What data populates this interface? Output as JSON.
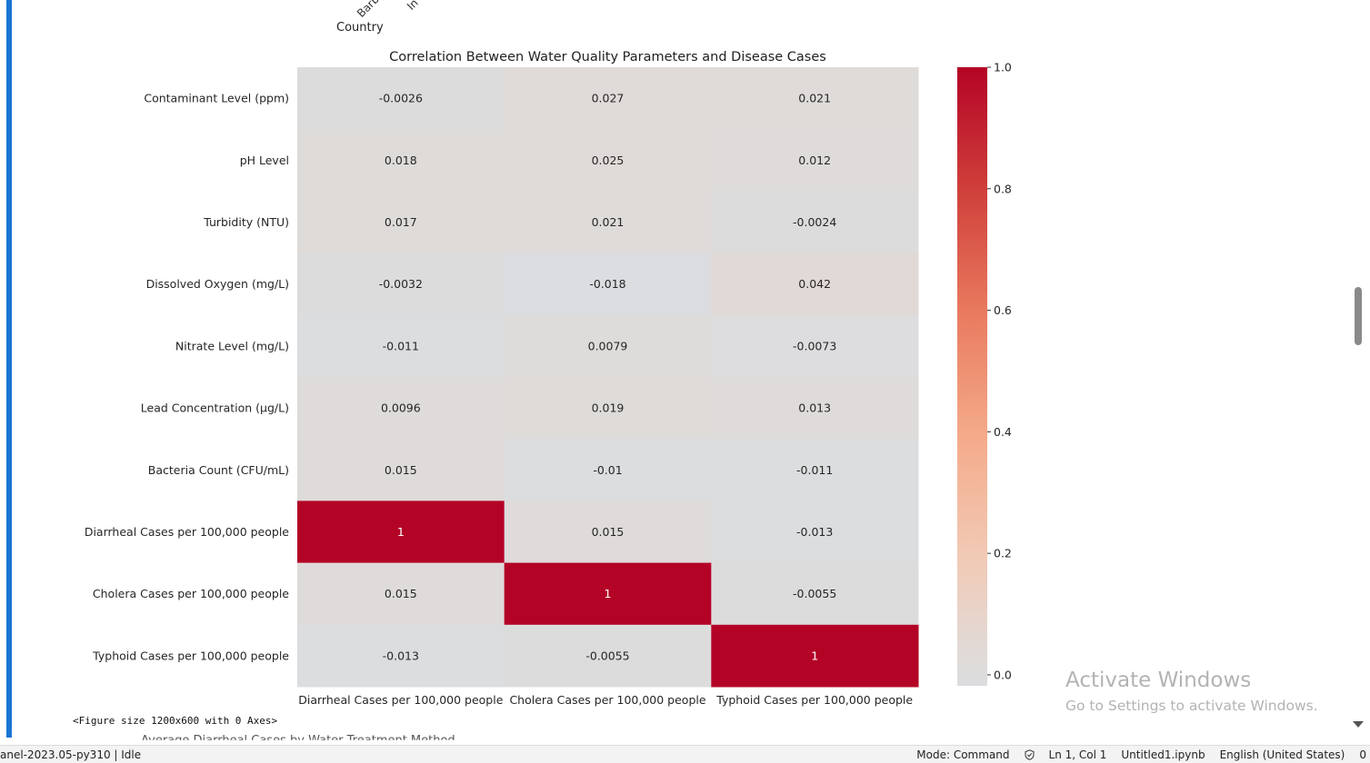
{
  "notebook": {
    "cut_top_labels": [
      "Barb",
      "In"
    ],
    "x_axis_label_previous": "Country",
    "figure_text": "<Figure size 1200x600 with 0 Axes>",
    "next_output_cut_text": "Average Diarrheal Cases by Water Treatment Method"
  },
  "chart_data": {
    "type": "heatmap",
    "title": "Correlation Between Water Quality Parameters and Disease Cases",
    "rows": [
      "Contaminant Level (ppm)",
      "pH Level",
      "Turbidity (NTU)",
      "Dissolved Oxygen (mg/L)",
      "Nitrate Level (mg/L)",
      "Lead Concentration (µg/L)",
      "Bacteria Count (CFU/mL)",
      "Diarrheal Cases per 100,000 people",
      "Cholera Cases per 100,000 people",
      "Typhoid Cases per 100,000 people"
    ],
    "columns": [
      "Diarrheal Cases per 100,000 people",
      "Cholera Cases per 100,000 people",
      "Typhoid Cases per 100,000 people"
    ],
    "values": [
      [
        -0.0026,
        0.027,
        0.021
      ],
      [
        0.018,
        0.025,
        0.012
      ],
      [
        0.017,
        0.021,
        -0.0024
      ],
      [
        -0.0032,
        -0.018,
        0.042
      ],
      [
        -0.011,
        0.0079,
        -0.0073
      ],
      [
        0.0096,
        0.019,
        0.013
      ],
      [
        0.015,
        -0.01,
        -0.011
      ],
      [
        1,
        0.015,
        -0.013
      ],
      [
        0.015,
        1,
        -0.0055
      ],
      [
        -0.013,
        -0.0055,
        1
      ]
    ],
    "value_labels": [
      [
        "-0.0026",
        "0.027",
        "0.021"
      ],
      [
        "0.018",
        "0.025",
        "0.012"
      ],
      [
        "0.017",
        "0.021",
        "-0.0024"
      ],
      [
        "-0.0032",
        "-0.018",
        "0.042"
      ],
      [
        "-0.011",
        "0.0079",
        "-0.0073"
      ],
      [
        "0.0096",
        "0.019",
        "0.013"
      ],
      [
        "0.015",
        "-0.01",
        "-0.011"
      ],
      [
        "1",
        "0.015",
        "-0.013"
      ],
      [
        "0.015",
        "1",
        "-0.0055"
      ],
      [
        "-0.013",
        "-0.0055",
        "1"
      ]
    ],
    "colormap": "coolwarm",
    "colorbar": {
      "range": [
        -0.018,
        1.0
      ],
      "ticks": [
        0.0,
        0.2,
        0.4,
        0.6,
        0.8,
        1.0
      ],
      "tick_labels": [
        "0.0",
        "0.2",
        "0.4",
        "0.6",
        "0.8",
        "1.0"
      ],
      "stops": [
        {
          "v": -0.018,
          "color": "#dcdde0"
        },
        {
          "v": 0.0,
          "color": "#dddcdc"
        },
        {
          "v": 0.05,
          "color": "#e2d9d4"
        },
        {
          "v": 0.2,
          "color": "#f2c9b4"
        },
        {
          "v": 0.4,
          "color": "#f4a988"
        },
        {
          "v": 0.6,
          "color": "#e8795e"
        },
        {
          "v": 0.8,
          "color": "#cf3f3a"
        },
        {
          "v": 1.0,
          "color": "#b40426"
        }
      ]
    }
  },
  "activation": {
    "title": "Activate Windows",
    "subtitle": "Go to Settings to activate Windows."
  },
  "statusbar": {
    "kernel": "anel-2023.05-py310 | Idle",
    "mode": "Mode: Command",
    "position": "Ln 1, Col 1",
    "file": "Untitled1.ipynb",
    "language": "English (United States)",
    "trailing": "0"
  }
}
